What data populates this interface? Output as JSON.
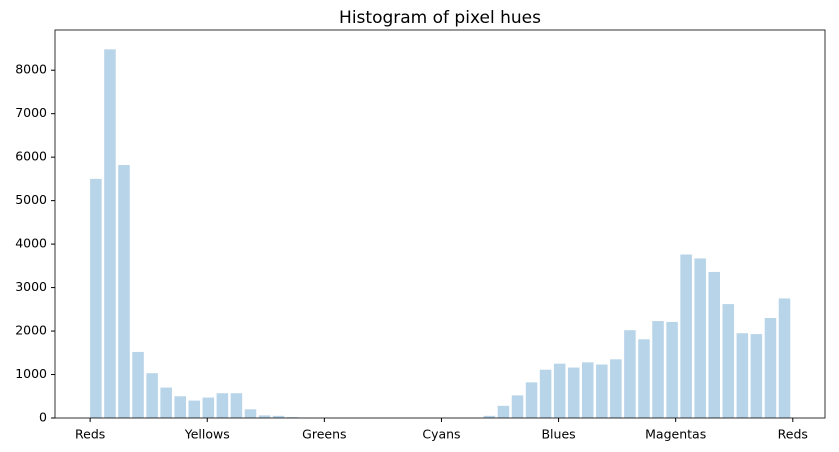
{
  "chart_data": {
    "type": "histogram",
    "title": "Histogram of pixel hues",
    "bins": [
      0,
      7.2,
      14.4,
      21.6,
      28.8,
      36,
      43.2,
      50.4,
      57.6,
      64.8,
      72,
      79.2,
      86.4,
      93.6,
      100.8,
      108,
      115.2,
      122.4,
      129.6,
      136.8,
      144,
      151.2,
      158.4,
      165.6,
      172.8,
      180,
      187.2,
      194.4,
      201.6,
      208.8,
      216,
      223.2,
      230.4,
      237.6,
      244.8,
      252,
      259.2,
      266.4,
      273.6,
      280.8,
      288,
      295.2,
      302.4,
      309.6,
      316.8,
      324,
      331.2,
      338.4,
      345.6,
      352.8,
      360
    ],
    "values": [
      5500,
      8480,
      5820,
      1520,
      1030,
      700,
      500,
      400,
      470,
      570,
      570,
      200,
      60,
      50,
      20,
      5,
      0,
      0,
      0,
      0,
      0,
      0,
      0,
      0,
      0,
      0,
      0,
      0,
      50,
      280,
      520,
      820,
      1110,
      1250,
      1160,
      1280,
      1230,
      1350,
      2020,
      1810,
      2230,
      2210,
      3760,
      3670,
      3360,
      2620,
      1950,
      1930,
      2300,
      2750
    ],
    "color": "#b7d4e8",
    "xlim": [
      -18,
      376.5
    ],
    "xticks": [
      {
        "value": 0,
        "label": "Reds"
      },
      {
        "value": 60,
        "label": "Yellows"
      },
      {
        "value": 120,
        "label": "Greens"
      },
      {
        "value": 180,
        "label": "Cyans"
      },
      {
        "value": 240,
        "label": "Blues"
      },
      {
        "value": 300,
        "label": "Magentas"
      },
      {
        "value": 360,
        "label": "Reds"
      }
    ],
    "ylim": [
      0,
      8925
    ],
    "yticks": [
      0,
      1000,
      2000,
      3000,
      4000,
      5000,
      6000,
      7000,
      8000
    ],
    "grid": false
  }
}
